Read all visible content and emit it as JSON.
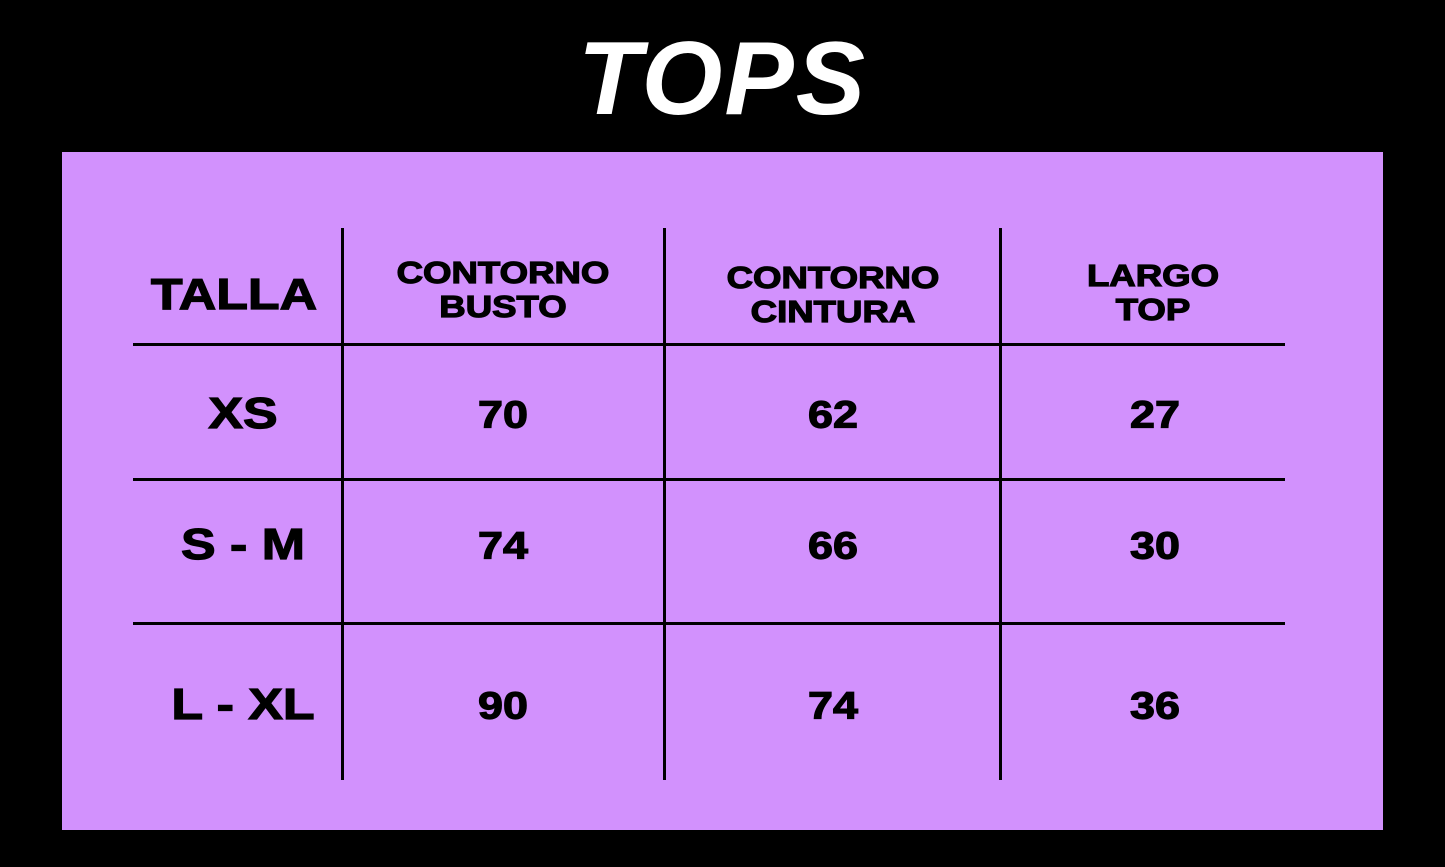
{
  "title": "TOPS",
  "colors": {
    "background": "#000000",
    "panel": "#d291fd",
    "title": "#ffffff"
  },
  "table": {
    "headers": [
      "TALLA",
      "CONTORNO\nBUSTO",
      "CONTORNO\nCINTURA",
      "LARGO\nTOP"
    ],
    "rows": [
      [
        "XS",
        "70",
        "62",
        "27"
      ],
      [
        "S - M",
        "74",
        "66",
        "30"
      ],
      [
        "L - XL",
        "90",
        "74",
        "36"
      ]
    ]
  }
}
